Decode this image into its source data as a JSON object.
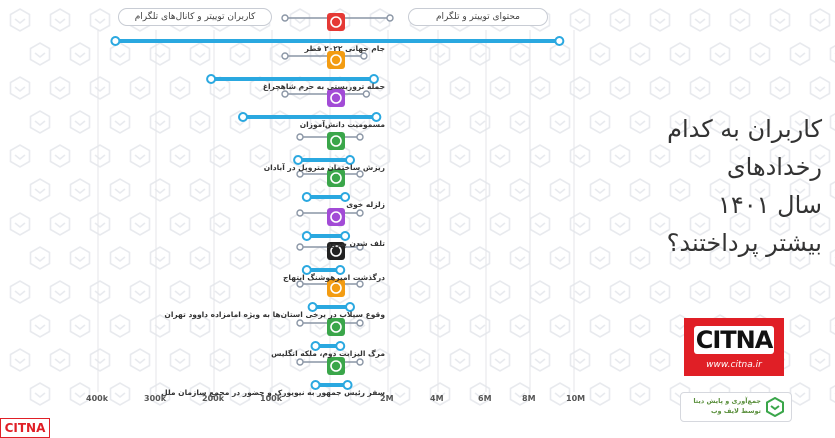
{
  "legend": {
    "left_label": "کاربران توییتر و کانال‌های تلگرام",
    "right_label": "محتوای توییتر و تلگرام"
  },
  "title_lines": [
    "کاربران به کدام",
    "رخدادهای",
    "سال ۱۴۰۱",
    "بیشتر پرداختند؟"
  ],
  "colors": {
    "accent": "#2aa8e0",
    "icon_green": "#3aa64a",
    "icon_red": "#e53935",
    "icon_orange": "#f39c12",
    "icon_purple": "#a24bd6",
    "icon_black": "#222222",
    "brand_red": "#e01f26",
    "pattern": "#e8eaee"
  },
  "chart_data": {
    "type": "dumbbell",
    "title": "کاربران به کدام رخدادهای سال ۱۴۰۱ بیشتر پرداختند؟",
    "left_axis": {
      "label": "کاربران توییتر و کانال‌های تلگرام",
      "ticks": [
        "400k",
        "300k",
        "200k",
        "100k"
      ],
      "range": [
        0,
        400000
      ]
    },
    "right_axis": {
      "label": "محتوای توییتر و تلگرام",
      "ticks": [
        "2M",
        "4M",
        "6M",
        "8M",
        "10M"
      ],
      "range": [
        0,
        10000000
      ]
    },
    "events": [
      {
        "name": "جام جهانی ۲۰۲۲ قطر",
        "icon": "soccer-ball-icon",
        "icon_color": "#e53935",
        "users": 370000,
        "content": 9400000
      },
      {
        "name": "حمله تروریستی به حرم شاهچراغ",
        "icon": "gun-icon",
        "icon_color": "#f39c12",
        "users": 205000,
        "content": 1800000
      },
      {
        "name": "مسمومیت دانش‌آموزان",
        "icon": "skull-icon",
        "icon_color": "#a24bd6",
        "users": 150000,
        "content": 1900000
      },
      {
        "name": "ریزش ساختمان متروپل در آبادان",
        "icon": "building-icon",
        "icon_color": "#3aa64a",
        "users": 55000,
        "content": 820000
      },
      {
        "name": "زلزله خوی",
        "icon": "house-quake-icon",
        "icon_color": "#3aa64a",
        "users": 40000,
        "content": 620000
      },
      {
        "name": "تلف شدن پیروز",
        "icon": "cheetah-icon",
        "icon_color": "#a24bd6",
        "users": 40000,
        "content": 620000
      },
      {
        "name": "درگذشت امیرهوشنگ ابتهاج",
        "icon": "portrait-icon",
        "icon_color": "#222222",
        "users": 40000,
        "content": 420000
      },
      {
        "name": "وقوع سیلاب در برخی استان‌ها به ویژه امامزاده داوود تهران",
        "icon": "flood-icon",
        "icon_color": "#f39c12",
        "users": 30000,
        "content": 820000
      },
      {
        "name": "مرگ الیزابت دوم، ملکه انگلیس",
        "icon": "crown-icon",
        "icon_color": "#3aa64a",
        "users": 25000,
        "content": 420000
      },
      {
        "name": "سفر رئیس جمهور به نیویورک و حضور در مجمع سازمان ملل",
        "icon": "city-icon",
        "icon_color": "#3aa64a",
        "users": 25000,
        "content": 720000
      }
    ]
  },
  "brand": {
    "logo_text": "CITNA",
    "url": "www.citna.ir",
    "credit": "جمع‌آوری و پایش دیتا توسط لایف وب",
    "small_logo": "CITNA"
  }
}
